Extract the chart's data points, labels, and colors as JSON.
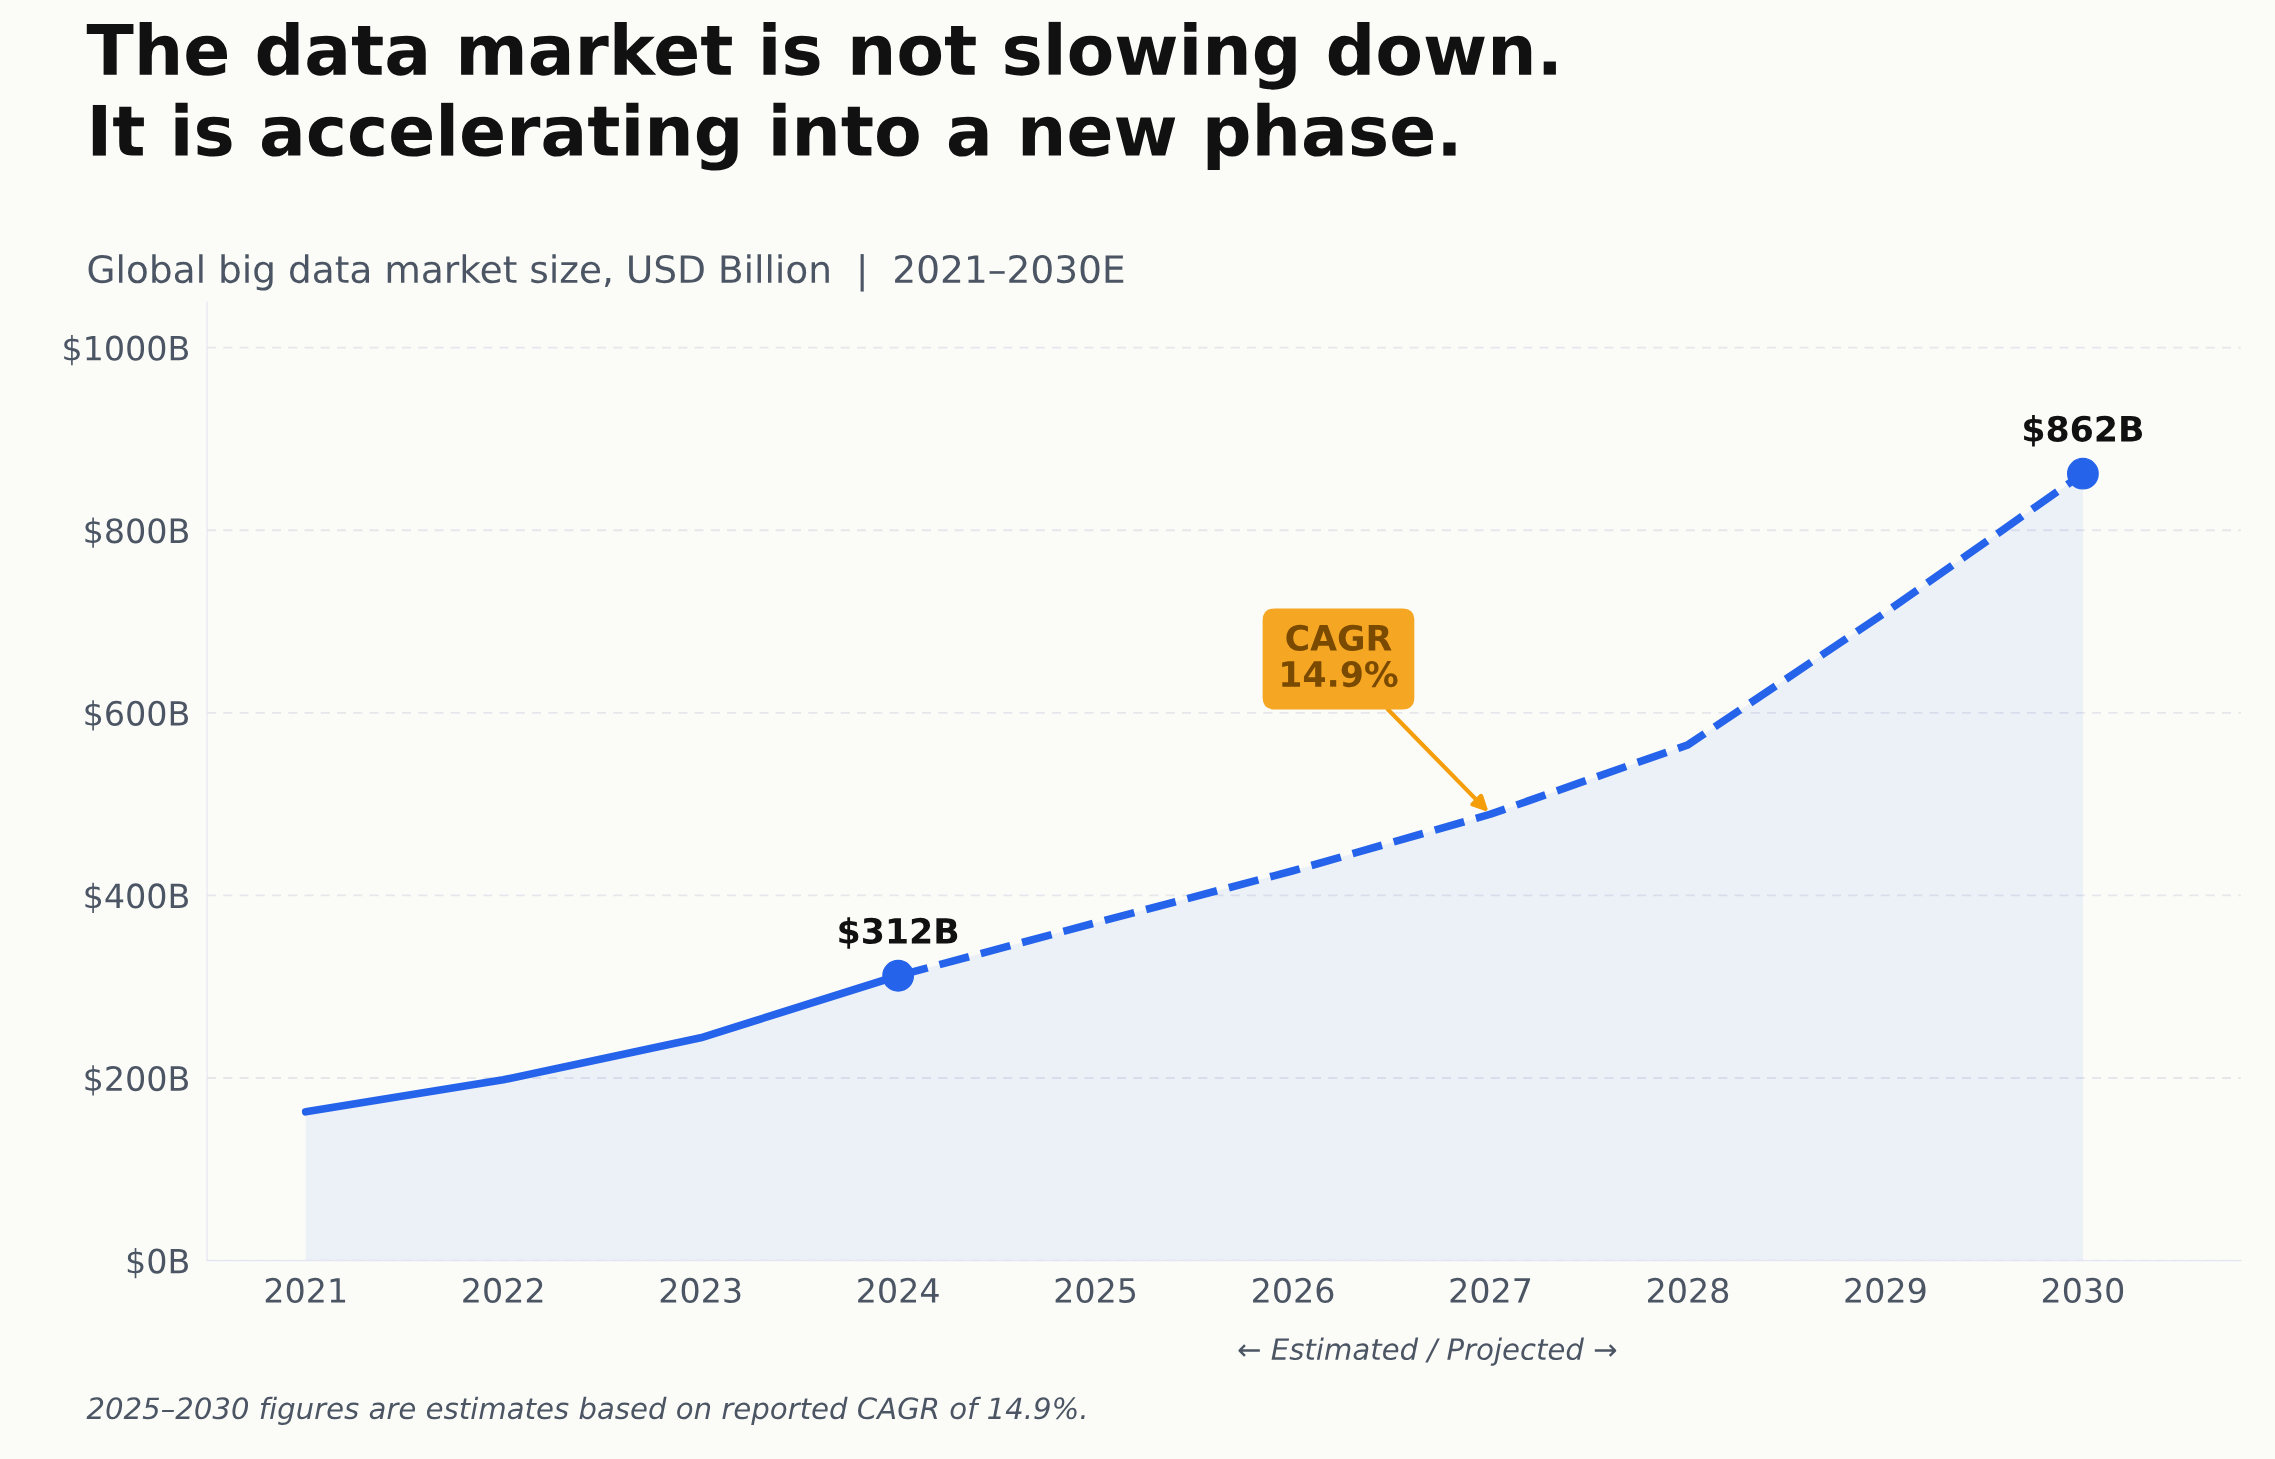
{
  "chart_data": {
    "type": "area",
    "title": "The data market is not slowing down.\nIt is accelerating into a new phase.",
    "subtitle": "Global big data market size, USD Billion  |  2021–2030E",
    "series": [
      {
        "color": "#2563eb",
        "line_style": "solid",
        "x": [
          2021,
          2022,
          2023,
          2024
        ],
        "values": [
          163,
          198,
          244,
          312
        ]
      },
      {
        "color": "#2563eb",
        "line_style": "dashed",
        "x": [
          2024,
          2025,
          2026,
          2027,
          2028,
          2029,
          2030
        ],
        "values": [
          312,
          370,
          427,
          489,
          565,
          710,
          862
        ]
      },
      {
        "type": "scatter",
        "color": "#2563eb",
        "x": [
          2024,
          2030
        ],
        "values": [
          312,
          862
        ],
        "value_labels": [
          "$312B",
          "$862B"
        ]
      }
    ],
    "xlim": [
      2020.5,
      2030.8
    ],
    "xticks": [
      2021,
      2022,
      2023,
      2024,
      2025,
      2026,
      2027,
      2028,
      2029,
      2030
    ],
    "ylim": [
      0,
      1050
    ],
    "yticks": [
      {
        "value": 0,
        "label": "$0B"
      },
      {
        "value": 200,
        "label": "$200B"
      },
      {
        "value": 400,
        "label": "$400B"
      },
      {
        "value": 600,
        "label": "$600B"
      },
      {
        "value": 800,
        "label": "$800B"
      },
      {
        "value": 1000,
        "label": "$1000B"
      }
    ],
    "grid": "y",
    "annotations": [
      {
        "text": "CAGR\n14.9%",
        "x": 2027,
        "y": 489
      },
      "← Estimated / Projected →",
      "2025–2030 figures are estimates based on reported CAGR of 14.9%."
    ]
  }
}
